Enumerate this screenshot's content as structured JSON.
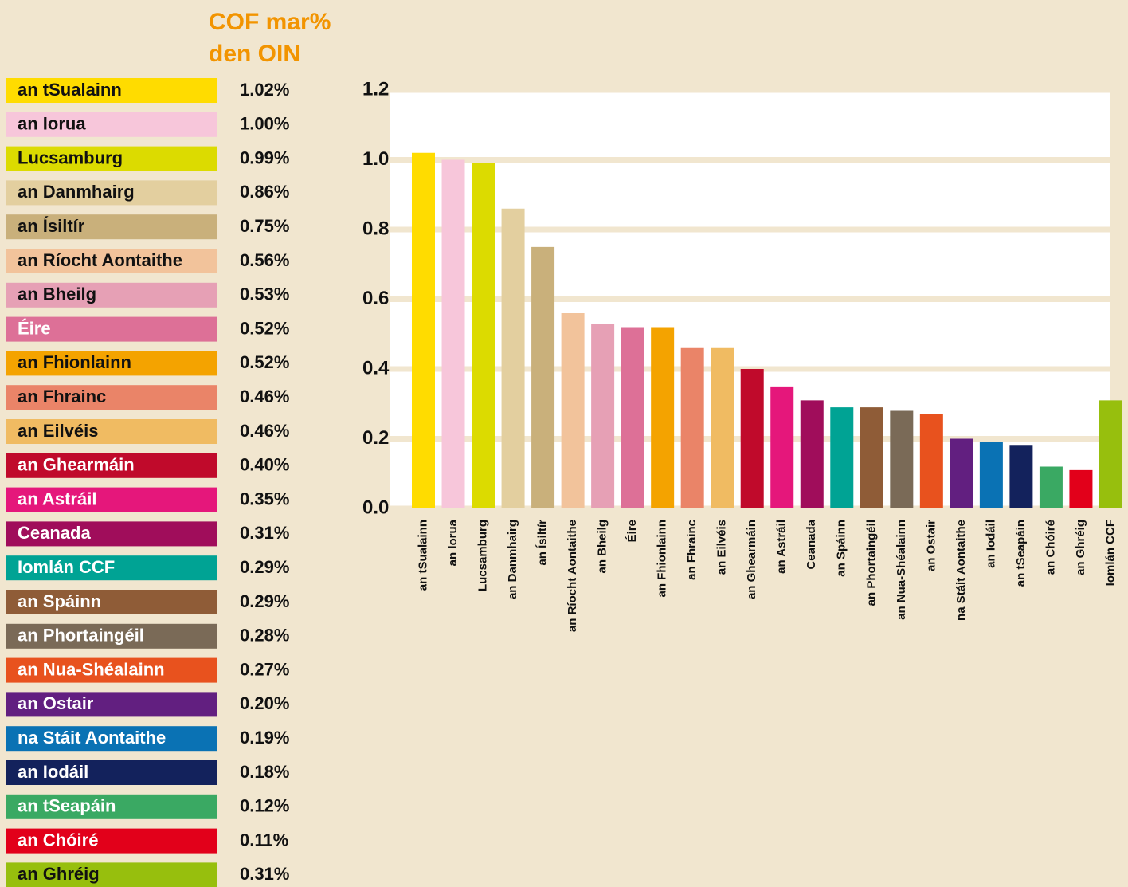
{
  "chart_data": {
    "type": "bar",
    "title": "COF mar% den OIN",
    "legend_names": [
      "an tSualainn",
      "an Iorua",
      "Lucsamburg",
      "an Danmhairg",
      "an Ísiltír",
      "an Ríocht Aontaithe",
      "an Bheilg",
      "Éire",
      "an Fhionlainn",
      "an Fhrainc",
      "an Eilvéis",
      "an Ghearmáin",
      "an Astráil",
      "Ceanada",
      "Iomlán CCF",
      "an Spáinn",
      "an Phortaingéil",
      "an Nua-Shéalainn",
      "an Ostair",
      "na Stáit Aontaithe",
      "an Iodáil",
      "an tSeapáin",
      "an Chóiré",
      "an Ghréig"
    ],
    "categories": [
      "an tSualainn",
      "an Iorua",
      "Lucsamburg",
      "an Danmhairg",
      "an Ísiltír",
      "an Ríocht Aontaithe",
      "an Bheilg",
      "Éire",
      "an Fhionlainn",
      "an Fhrainc",
      "an Eilvéis",
      "an Ghearmáin",
      "an Astráil",
      "Ceanada",
      "an Spáinn",
      "an Phortaingéil",
      "an Nua-Shéalainn",
      "an Ostair",
      "na Stáit Aontaithe",
      "an Iodáil",
      "an tSeapáin",
      "an Chóiré",
      "an Ghréig",
      "Iomlán CCF"
    ],
    "values": [
      1.02,
      1.0,
      0.99,
      0.86,
      0.75,
      0.56,
      0.53,
      0.52,
      0.52,
      0.46,
      0.46,
      0.4,
      0.35,
      0.31,
      0.29,
      0.29,
      0.28,
      0.27,
      0.2,
      0.19,
      0.18,
      0.12,
      0.11,
      0.31
    ],
    "value_labels": [
      "1.02%",
      "1.00%",
      "0.99%",
      "0.86%",
      "0.75%",
      "0.56%",
      "0.53%",
      "0.52%",
      "0.52%",
      "0.46%",
      "0.46%",
      "0.40%",
      "0.35%",
      "0.31%",
      "0.29%",
      "0.29%",
      "0.28%",
      "0.27%",
      "0.20%",
      "0.19%",
      "0.18%",
      "0.12%",
      "0.11%",
      "0.31%"
    ],
    "colors": [
      "#ffdc00",
      "#f7c6da",
      "#dcdb00",
      "#e3cf9f",
      "#c9b07b",
      "#f2c39b",
      "#e6a0b5",
      "#dd7097",
      "#f4a300",
      "#ea8468",
      "#f0bb62",
      "#c00a2b",
      "#e5177b",
      "#a00d5b",
      "#00a394",
      "#8f5c37",
      "#7a6a57",
      "#e8521e",
      "#621f80",
      "#0a72b4",
      "#13225c",
      "#3aa963",
      "#e2001a",
      "#97bf0d"
    ],
    "ylim": [
      0,
      1.2
    ],
    "yticks": [
      {
        "value": 0,
        "label": "0.0"
      },
      0.2,
      0.4,
      0.6,
      0.8,
      {
        "value": 1,
        "label": "1.0"
      },
      1.2
    ],
    "grid": true
  }
}
